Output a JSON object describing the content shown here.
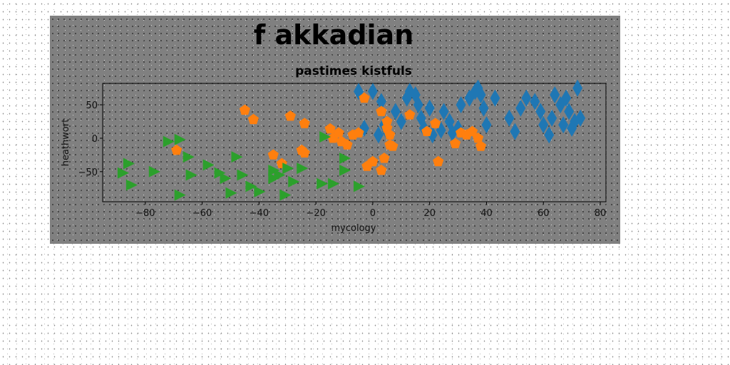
{
  "figure_title": "f akkadian",
  "colors": {
    "page_background": "#ffffff",
    "figure_background": "#808080",
    "series_blue": "#1f77b4",
    "series_orange": "#ff7f0e",
    "series_green": "#2ca02c"
  },
  "chart_data": {
    "type": "scatter",
    "title": "pastimes kistfuls",
    "xlabel": "mycology",
    "ylabel": "heathwort",
    "xlim": [
      -95,
      82
    ],
    "ylim": [
      -95,
      82
    ],
    "xticks": [
      -80,
      -60,
      -40,
      -20,
      0,
      20,
      40,
      60,
      80
    ],
    "yticks": [
      -50,
      0,
      50
    ],
    "grid": false,
    "legend": "none",
    "series": [
      {
        "marker": "thin-diamond",
        "color": "#1f77b4",
        "points": [
          [
            -5,
            70
          ],
          [
            0,
            70
          ],
          [
            -3,
            15
          ],
          [
            2,
            5
          ],
          [
            3,
            55
          ],
          [
            4,
            20
          ],
          [
            5,
            10
          ],
          [
            8,
            40
          ],
          [
            10,
            25
          ],
          [
            12,
            60
          ],
          [
            13,
            70
          ],
          [
            15,
            65
          ],
          [
            16,
            50
          ],
          [
            17,
            30
          ],
          [
            18,
            15
          ],
          [
            20,
            45
          ],
          [
            21,
            5
          ],
          [
            24,
            12
          ],
          [
            25,
            40
          ],
          [
            27,
            25
          ],
          [
            28,
            8
          ],
          [
            30,
            15
          ],
          [
            31,
            50
          ],
          [
            34,
            60
          ],
          [
            36,
            70
          ],
          [
            37,
            75
          ],
          [
            38,
            65
          ],
          [
            39,
            45
          ],
          [
            40,
            20
          ],
          [
            43,
            60
          ],
          [
            48,
            30
          ],
          [
            50,
            10
          ],
          [
            52,
            45
          ],
          [
            54,
            60
          ],
          [
            57,
            55
          ],
          [
            59,
            40
          ],
          [
            60,
            20
          ],
          [
            62,
            5
          ],
          [
            63,
            30
          ],
          [
            64,
            65
          ],
          [
            66,
            50
          ],
          [
            67,
            20
          ],
          [
            68,
            60
          ],
          [
            69,
            40
          ],
          [
            70,
            15
          ],
          [
            71,
            25
          ],
          [
            72,
            75
          ],
          [
            73,
            30
          ]
        ]
      },
      {
        "marker": "pentagon",
        "color": "#ff7f0e",
        "points": [
          [
            -45,
            42
          ],
          [
            -42,
            28
          ],
          [
            -29,
            33
          ],
          [
            -24,
            22
          ],
          [
            -15,
            14
          ],
          [
            -14,
            0
          ],
          [
            -12,
            8
          ],
          [
            -11,
            -5
          ],
          [
            -9,
            -10
          ],
          [
            -7,
            5
          ],
          [
            -5,
            8
          ],
          [
            -3,
            60
          ],
          [
            -2,
            -42
          ],
          [
            0,
            -35
          ],
          [
            3,
            40
          ],
          [
            3,
            -48
          ],
          [
            4,
            -30
          ],
          [
            5,
            25
          ],
          [
            5,
            15
          ],
          [
            6,
            5
          ],
          [
            6,
            -10
          ],
          [
            7,
            -12
          ],
          [
            13,
            35
          ],
          [
            19,
            10
          ],
          [
            22,
            22
          ],
          [
            23,
            -35
          ],
          [
            29,
            -8
          ],
          [
            31,
            8
          ],
          [
            33,
            5
          ],
          [
            35,
            10
          ],
          [
            37,
            0
          ],
          [
            38,
            -12
          ],
          [
            -35,
            -25
          ],
          [
            -32,
            -38
          ],
          [
            -25,
            -18
          ],
          [
            -24,
            -22
          ],
          [
            -69,
            -18
          ]
        ]
      },
      {
        "marker": "triangle-right",
        "color": "#2ca02c",
        "points": [
          [
            -86,
            -38
          ],
          [
            -88,
            -52
          ],
          [
            -85,
            -70
          ],
          [
            -77,
            -50
          ],
          [
            -72,
            -5
          ],
          [
            -68,
            -2
          ],
          [
            -65,
            -28
          ],
          [
            -64,
            -55
          ],
          [
            -58,
            -40
          ],
          [
            -54,
            -52
          ],
          [
            -52,
            -60
          ],
          [
            -50,
            -82
          ],
          [
            -48,
            -28
          ],
          [
            -46,
            -55
          ],
          [
            -43,
            -72
          ],
          [
            -40,
            -80
          ],
          [
            -35,
            -48
          ],
          [
            -35,
            -60
          ],
          [
            -33,
            -55
          ],
          [
            -31,
            -85
          ],
          [
            -30,
            -45
          ],
          [
            -28,
            -65
          ],
          [
            -25,
            -45
          ],
          [
            -18,
            -68
          ],
          [
            -17,
            2
          ],
          [
            -14,
            -68
          ],
          [
            -10,
            -30
          ],
          [
            -10,
            -48
          ],
          [
            -5,
            -72
          ],
          [
            -68,
            -85
          ]
        ]
      }
    ]
  }
}
